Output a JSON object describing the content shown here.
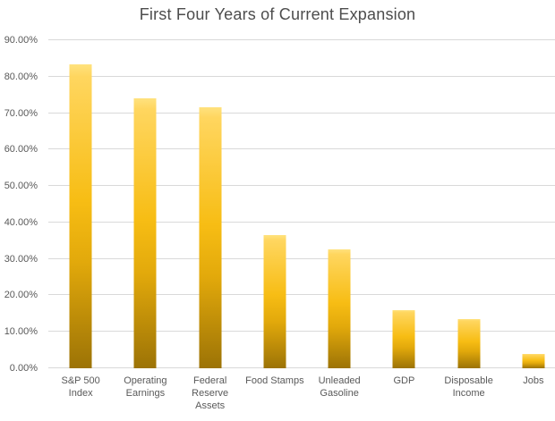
{
  "chart_data": {
    "type": "bar",
    "title": "First Four Years of Current Expansion",
    "categories": [
      "S&P 500 Index",
      "Operating Earnings",
      "Federal Reserve Assets",
      "Food Stamps",
      "Unleaded Gasoline",
      "GDP",
      "Disposable Income",
      "Jobs"
    ],
    "values": [
      83.5,
      74.0,
      71.5,
      36.5,
      32.5,
      16.0,
      13.5,
      4.0
    ],
    "unit": "percent",
    "xlabel": "",
    "ylabel": "",
    "ylim": [
      0,
      90
    ],
    "ytick_step": 10,
    "ytick_labels": [
      "0.00%",
      "10.00%",
      "20.00%",
      "30.00%",
      "40.00%",
      "50.00%",
      "60.00%",
      "70.00%",
      "80.00%",
      "90.00%"
    ],
    "grid": true,
    "legend": "none",
    "colors": {
      "bar_gradient_top": "#FFD65F",
      "bar_gradient_mid": "#F7BD14",
      "bar_gradient_bottom": "#9C7306",
      "gridline": "#D9D9D9",
      "axis_text": "#595959",
      "title_text": "#4D4D4D",
      "background": "#FFFFFF"
    }
  }
}
